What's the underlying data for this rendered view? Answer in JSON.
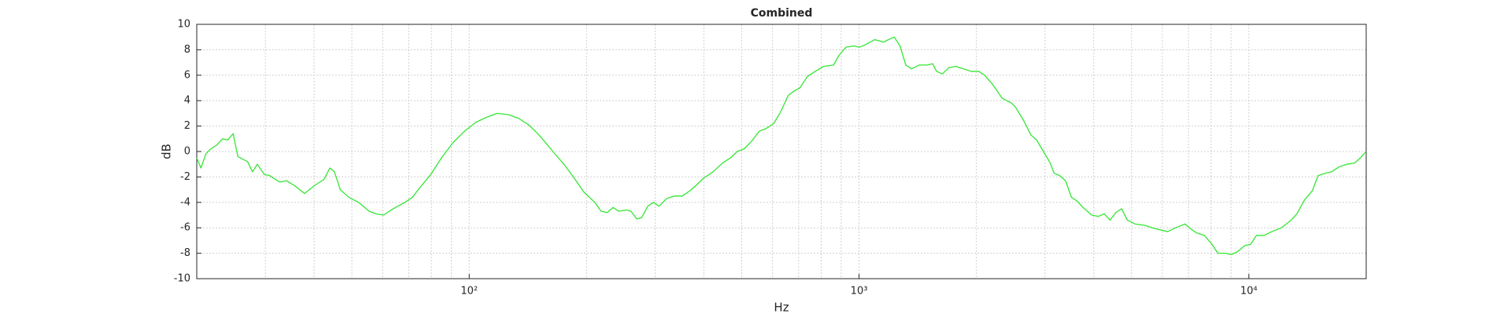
{
  "chart_data": {
    "type": "line",
    "title": "Combined",
    "xlabel": "Hz",
    "ylabel": "dB",
    "xscale": "log",
    "grid": true,
    "xlim": [
      20,
      20000
    ],
    "ylim": [
      -10,
      10
    ],
    "xticks": [
      {
        "value": 100,
        "label": "10²"
      },
      {
        "value": 1000,
        "label": "10³"
      },
      {
        "value": 10000,
        "label": "10⁴"
      }
    ],
    "xminorticks": [
      30,
      40,
      50,
      60,
      70,
      80,
      90,
      200,
      300,
      400,
      500,
      600,
      700,
      800,
      900,
      2000,
      3000,
      4000,
      5000,
      6000,
      7000,
      8000,
      9000
    ],
    "yticks": [
      -10,
      -8,
      -6,
      -4,
      -2,
      0,
      2,
      4,
      6,
      8,
      10
    ],
    "x": [
      20,
      20.5,
      21.1,
      21.7,
      22.5,
      23.3,
      24.0,
      24.8,
      25.5,
      27.0,
      27.8,
      28.6,
      29.8,
      30.8,
      32.6,
      34.0,
      35.7,
      37.8,
      40.0,
      42.4,
      43.9,
      45.1,
      46.7,
      49.1,
      52.0,
      55.4,
      57.6,
      60.3,
      63.8,
      68.4,
      71.5,
      74.9,
      79.7,
      84.9,
      90.9,
      97.3,
      104,
      111,
      118,
      126,
      134,
      142,
      150,
      158,
      165,
      175,
      185,
      197,
      210,
      218,
      226,
      234,
      242,
      253,
      260,
      269,
      277,
      287,
      297,
      307,
      321,
      336,
      352,
      368,
      381,
      399,
      422,
      447,
      468,
      487,
      507,
      530,
      555,
      577,
      604,
      629,
      658,
      677,
      705,
      737,
      772,
      812,
      860,
      890,
      926,
      969,
      1003,
      1038,
      1098,
      1156,
      1190,
      1231,
      1274,
      1318,
      1364,
      1427,
      1493,
      1545,
      1581,
      1636,
      1702,
      1771,
      1854,
      1940,
      2030,
      2101,
      2198,
      2327,
      2464,
      2519,
      2637,
      2760,
      2856,
      2972,
      3093,
      3164,
      3274,
      3387,
      3506,
      3628,
      3754,
      3952,
      4112,
      4256,
      4404,
      4557,
      4716,
      4880,
      5107,
      5405,
      5656,
      5987,
      6194,
      6483,
      6862,
      7100,
      7347,
      7688,
      8046,
      8326,
      8714,
      9016,
      9330,
      9764,
      10104,
      10456,
      10940,
      11452,
      12122,
      12834,
      13282,
      13898,
      14544,
      15050,
      15752,
      16294,
      17056,
      17850,
      18680,
      19326,
      20000
    ],
    "series": [
      {
        "name": "Combined",
        "color": "#33e633",
        "values": [
          -0.5,
          -1.3,
          -0.2,
          0.2,
          0.5,
          1.0,
          0.9,
          1.4,
          -0.4,
          -0.8,
          -1.6,
          -1.0,
          -1.8,
          -1.9,
          -2.4,
          -2.3,
          -2.7,
          -3.3,
          -2.7,
          -2.2,
          -1.3,
          -1.6,
          -3.0,
          -3.6,
          -4.0,
          -4.7,
          -4.9,
          -5.0,
          -4.5,
          -4.0,
          -3.6,
          -2.8,
          -1.8,
          -0.5,
          0.7,
          1.6,
          2.3,
          2.7,
          3.0,
          2.9,
          2.6,
          2.1,
          1.4,
          0.6,
          -0.1,
          -1.0,
          -2.0,
          -3.2,
          -4.0,
          -4.7,
          -4.8,
          -4.4,
          -4.7,
          -4.6,
          -4.7,
          -5.3,
          -5.2,
          -4.3,
          -4.0,
          -4.3,
          -3.7,
          -3.5,
          -3.5,
          -3.1,
          -2.7,
          -2.1,
          -1.6,
          -0.9,
          -0.5,
          0.0,
          0.2,
          0.8,
          1.6,
          1.8,
          2.2,
          3.1,
          4.4,
          4.7,
          5.0,
          5.9,
          6.3,
          6.7,
          6.8,
          7.6,
          8.2,
          8.3,
          8.2,
          8.4,
          8.8,
          8.6,
          8.8,
          9.0,
          8.3,
          6.8,
          6.5,
          6.8,
          6.8,
          6.9,
          6.3,
          6.1,
          6.6,
          6.7,
          6.5,
          6.3,
          6.3,
          6.0,
          5.3,
          4.2,
          3.8,
          3.5,
          2.5,
          1.3,
          0.9,
          0.0,
          -0.9,
          -1.7,
          -1.9,
          -2.3,
          -3.6,
          -3.9,
          -4.4,
          -5.0,
          -5.1,
          -4.9,
          -5.4,
          -4.8,
          -4.5,
          -5.4,
          -5.7,
          -5.8,
          -6.0,
          -6.2,
          -6.3,
          -6.0,
          -5.7,
          -6.1,
          -6.4,
          -6.6,
          -7.3,
          -8.0,
          -8.0,
          -8.1,
          -7.9,
          -7.4,
          -7.3,
          -6.6,
          -6.6,
          -6.3,
          -6.0,
          -5.4,
          -4.9,
          -3.8,
          -3.1,
          -1.9,
          -1.7,
          -1.6,
          -1.2,
          -1.0,
          -0.9,
          -0.5,
          0.0
        ]
      }
    ]
  }
}
